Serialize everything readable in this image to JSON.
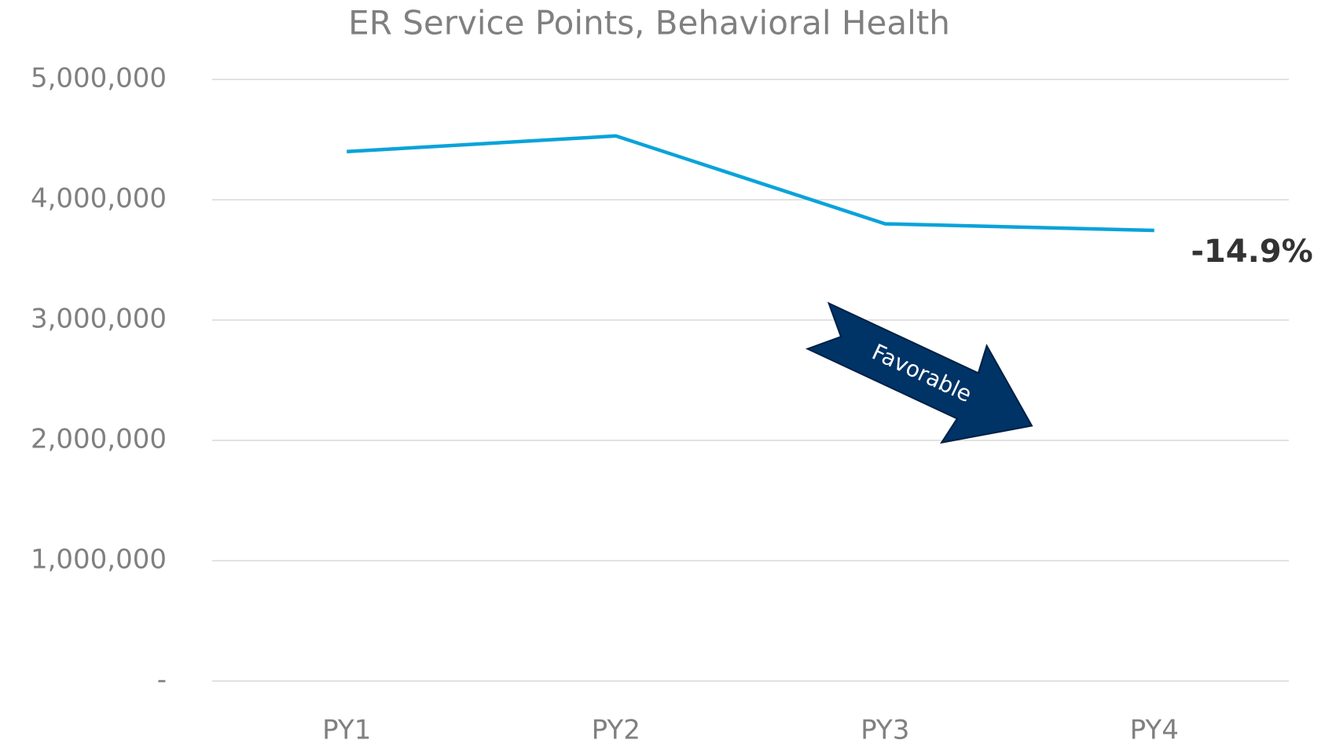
{
  "chart_data": {
    "type": "line",
    "title": "ER Service Points, Behavioral Health",
    "categories": [
      "PY1",
      "PY2",
      "PY3",
      "PY4"
    ],
    "series": [
      {
        "name": "ER Service Points",
        "color": "#0aa3d9",
        "values": [
          4400000,
          4530000,
          3800000,
          3745000
        ]
      }
    ],
    "ylim": [
      0,
      5000000
    ],
    "yticks": [
      {
        "value": 0,
        "label": "-"
      },
      {
        "value": 1000000,
        "label": "1,000,000"
      },
      {
        "value": 2000000,
        "label": "2,000,000"
      },
      {
        "value": 3000000,
        "label": "3,000,000"
      },
      {
        "value": 4000000,
        "label": "4,000,000"
      },
      {
        "value": 5000000,
        "label": "5,000,000"
      }
    ],
    "grid": true,
    "annotations": [
      "-14.9%",
      "Favorable"
    ]
  }
}
